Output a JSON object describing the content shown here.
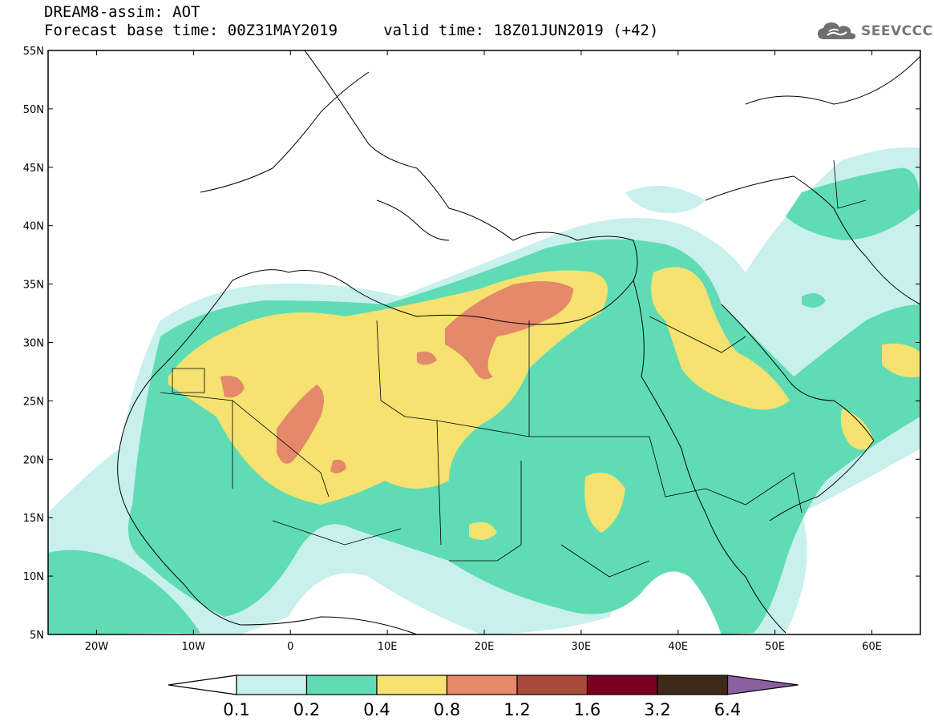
{
  "header": {
    "line1": "DREAM8-assim: AOT",
    "line2": "Forecast base time: 00Z31MAY2019     valid time: 18Z01JUN2019 (+42)"
  },
  "logo": {
    "text": "SEEVCCC",
    "icon": "cloud-icon"
  },
  "map": {
    "lon_range": [
      -25,
      65
    ],
    "lat_range": [
      5,
      55
    ],
    "y_ticks": [
      "55N",
      "50N",
      "45N",
      "40N",
      "35N",
      "30N",
      "25N",
      "20N",
      "15N",
      "10N",
      "5N"
    ],
    "x_ticks": [
      "20W",
      "10W",
      "0",
      "10E",
      "20E",
      "30E",
      "40E",
      "50E",
      "60E"
    ]
  },
  "legend": {
    "labels": [
      "0.1",
      "0.2",
      "0.4",
      "0.8",
      "1.2",
      "1.6",
      "3.2",
      "6.4"
    ],
    "colors": [
      "#ffffff",
      "#c8f0ec",
      "#5fdcb4",
      "#f5e270",
      "#e4896a",
      "#a84b3c",
      "#7a0024",
      "#3f2a1a",
      "#8a60a0"
    ]
  }
}
